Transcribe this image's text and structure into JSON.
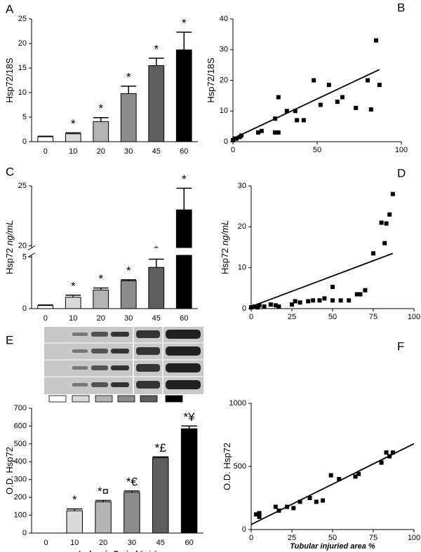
{
  "chart_data": [
    {
      "type": "bar",
      "panel": "A",
      "ylabel": "Hsp72/18S",
      "categories": [
        "0",
        "10",
        "20",
        "30",
        "45",
        "60"
      ],
      "values": [
        1,
        1.6,
        4.1,
        9.8,
        15.5,
        18.7
      ],
      "errors": [
        0.1,
        0.2,
        0.8,
        1.5,
        1.5,
        3.6
      ],
      "annotations": [
        null,
        "*",
        "*",
        "*",
        "*",
        "*"
      ],
      "colors": [
        "#ffffff",
        "#d9d9d9",
        "#b3b3b3",
        "#8c8c8c",
        "#5e5e5e",
        "#000000"
      ],
      "ylim": [
        0,
        25
      ],
      "yticks": [
        0,
        5,
        10,
        15,
        20,
        25
      ]
    },
    {
      "type": "scatter",
      "panel": "B",
      "ylabel": "Hsp72/18S",
      "color": "#000000",
      "x": [
        0,
        1,
        2,
        4,
        5,
        15,
        17,
        25,
        27,
        25,
        27,
        32,
        37,
        38,
        42,
        48,
        52,
        57,
        62,
        65,
        73,
        80,
        82,
        85,
        87
      ],
      "values": [
        0.5,
        1,
        1,
        1.5,
        2,
        3,
        3.5,
        3,
        3,
        7.5,
        14.5,
        10,
        10,
        7,
        7,
        20,
        12,
        18.5,
        13,
        14.5,
        11,
        20,
        10.5,
        33,
        18.5
      ],
      "fit_x": [
        0,
        87
      ],
      "fit_y": [
        1,
        23.5
      ],
      "xlim": [
        0,
        100
      ],
      "xticks": [
        0,
        50,
        100
      ],
      "ylim": [
        0,
        40
      ],
      "yticks": [
        0,
        10,
        20,
        30,
        40
      ]
    },
    {
      "type": "bar",
      "panel": "C",
      "ylabel": "Hsp72",
      "ylabel_unit": "ng/mL",
      "categories": [
        "0",
        "10",
        "20",
        "30",
        "45",
        "60"
      ],
      "values": [
        0.3,
        1.1,
        1.8,
        2.7,
        4.0,
        23.0
      ],
      "errors": [
        0.05,
        0.2,
        0.2,
        0.1,
        0.8,
        1.8
      ],
      "annotations": [
        null,
        "*",
        "*",
        "*",
        "*",
        "*"
      ],
      "colors": [
        "#ffffff",
        "#d9d9d9",
        "#b3b3b3",
        "#8c8c8c",
        "#5e5e5e",
        "#000000"
      ],
      "ylim": [
        0,
        25
      ],
      "ybreak": [
        5,
        20
      ],
      "yticks": [
        0,
        5,
        20,
        25
      ]
    },
    {
      "type": "scatter",
      "panel": "D",
      "ylabel": "Hsp72",
      "ylabel_unit": "ng/mL",
      "color": "#000000",
      "x": [
        0,
        2,
        4,
        5,
        8,
        12,
        15,
        17,
        25,
        27,
        30,
        35,
        38,
        42,
        45,
        50,
        50,
        55,
        60,
        65,
        67,
        70,
        75,
        80,
        82,
        83,
        85,
        87
      ],
      "values": [
        0.3,
        0.5,
        0.3,
        0.8,
        0.5,
        1,
        0.8,
        0.5,
        1,
        1.8,
        1.5,
        1.8,
        2,
        2,
        2.5,
        5.3,
        2,
        2,
        2,
        3.5,
        3.5,
        4.5,
        13.5,
        21,
        16,
        20.8,
        23,
        28
      ],
      "fit_x": [
        0,
        87
      ],
      "fit_y": [
        0.5,
        13.5
      ],
      "xlim": [
        0,
        100
      ],
      "xticks": [
        0,
        25,
        50,
        75,
        100
      ],
      "ylim": [
        0,
        30
      ],
      "yticks": [
        0,
        10,
        20,
        30
      ]
    },
    {
      "type": "bar",
      "panel": "E",
      "ylabel": "O.D. Hsp72",
      "xlabel": "Ischemia Period",
      "xlabel_unit": "(min)",
      "categories": [
        "0",
        "10",
        "20",
        "30",
        "45",
        "60"
      ],
      "values": [
        0,
        125,
        175,
        228,
        422,
        585
      ],
      "errors": [
        0,
        10,
        8,
        8,
        5,
        15
      ],
      "annotations": [
        null,
        "*",
        "*¤",
        "*€",
        "*£",
        "*¥"
      ],
      "colors": [
        "#ffffff",
        "#d9d9d9",
        "#b3b3b3",
        "#8c8c8c",
        "#5e5e5e",
        "#000000"
      ],
      "ylim": [
        0,
        700
      ],
      "yticks": [
        0,
        100,
        200,
        300,
        400,
        500,
        600,
        700
      ]
    },
    {
      "type": "scatter",
      "panel": "F",
      "ylabel": "O.D. Hsp72",
      "xlabel": "Tubular injuried area %",
      "color": "#000000",
      "x": [
        3,
        5,
        5,
        15,
        17,
        22,
        26,
        30,
        36,
        40,
        44,
        49,
        54,
        64,
        66,
        80,
        83,
        85,
        87
      ],
      "values": [
        120,
        130,
        100,
        180,
        150,
        180,
        170,
        220,
        250,
        220,
        230,
        430,
        400,
        420,
        440,
        530,
        610,
        580,
        610
      ],
      "fit_x": [
        0,
        100
      ],
      "fit_y": [
        40,
        680
      ],
      "xlim": [
        0,
        100
      ],
      "xticks": [
        0,
        25,
        50,
        75,
        100
      ],
      "ylim": [
        0,
        1000
      ],
      "yticks": [
        0,
        500,
        1000
      ]
    }
  ]
}
